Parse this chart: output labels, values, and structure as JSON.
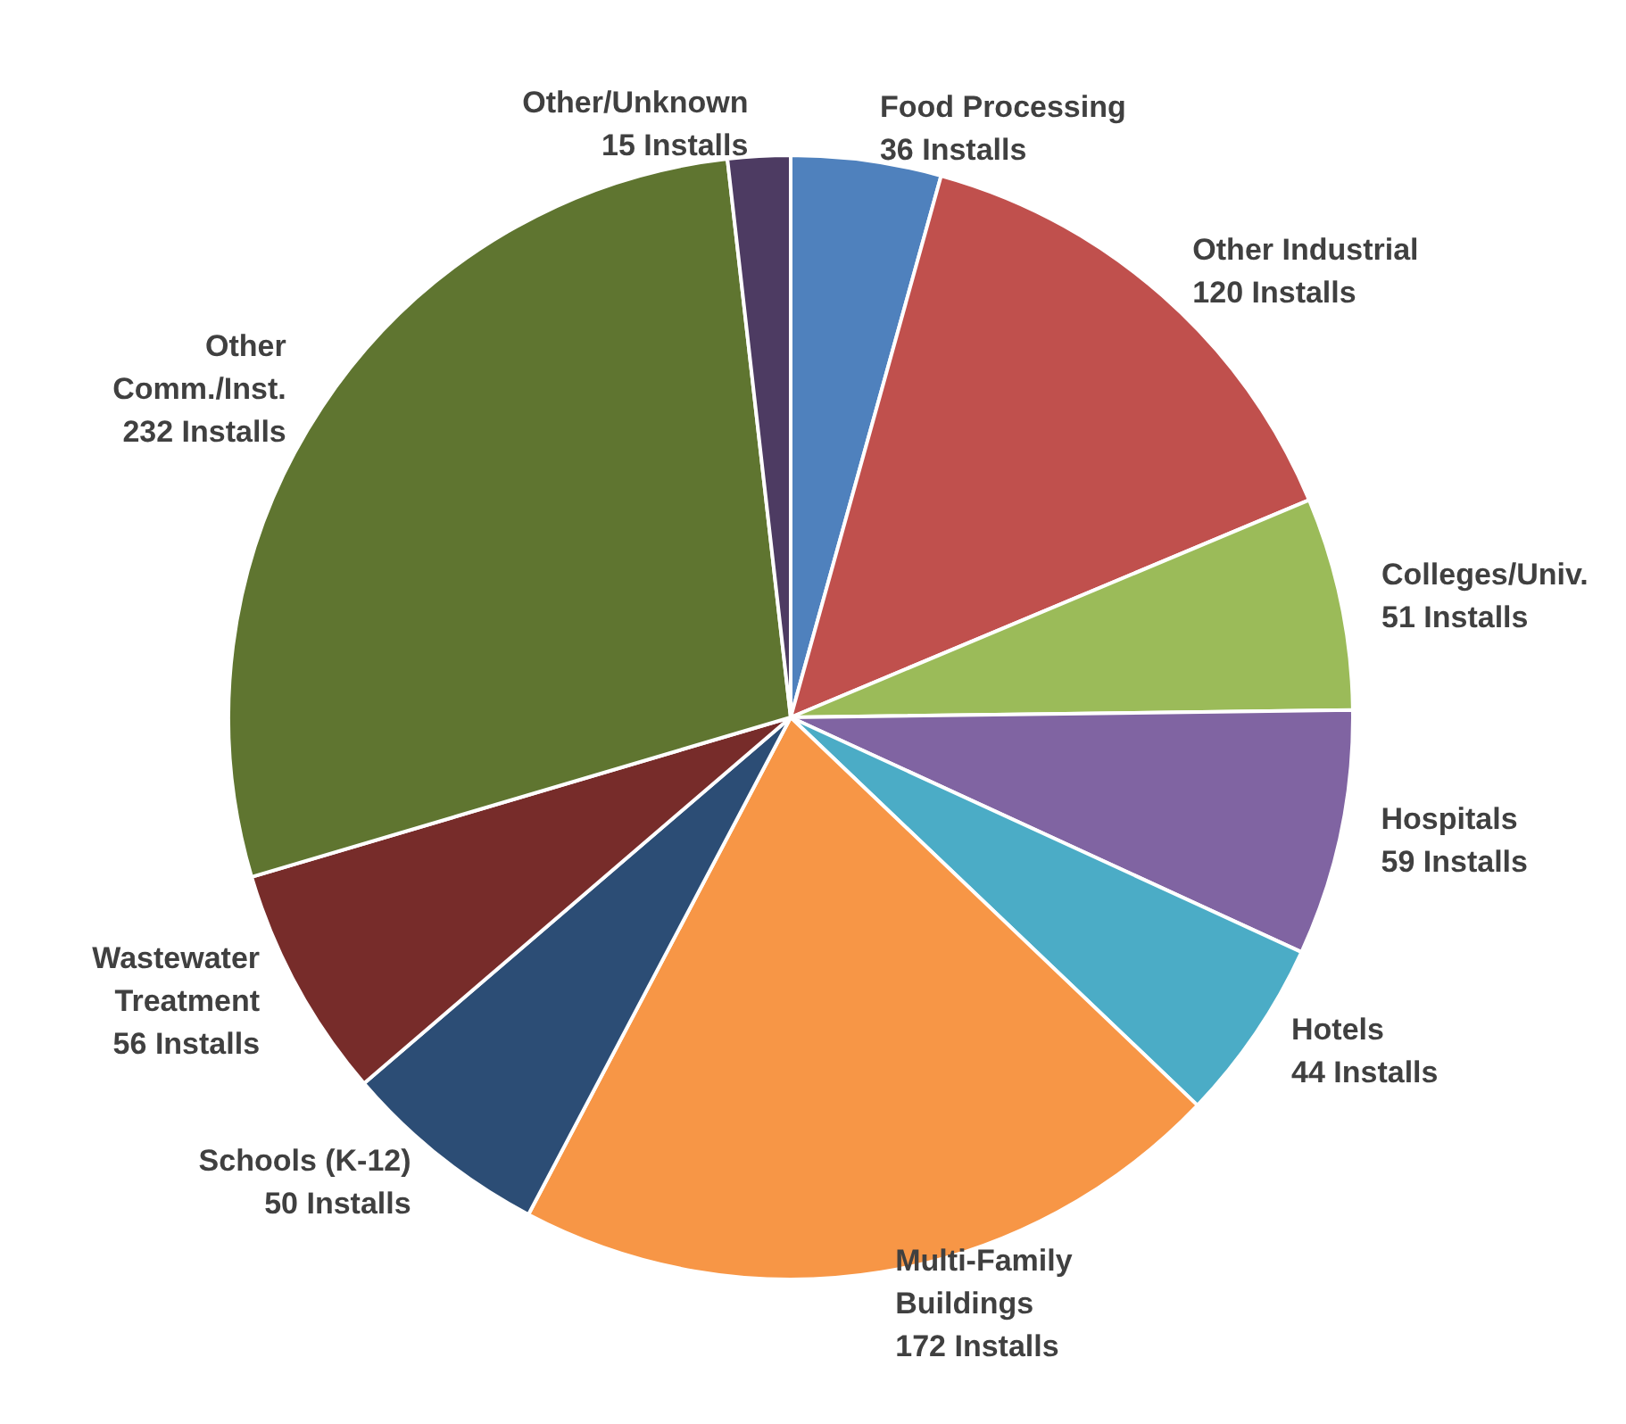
{
  "chart_data": {
    "type": "pie",
    "categories": [
      "Food Processing",
      "Other Industrial",
      "Colleges/Univ.",
      "Hospitals",
      "Hotels",
      "Multi-Family\nBuildings",
      "Schools (K-12)",
      "Wastewater\nTreatment",
      "Other\nComm./Inst.",
      "Other/Unknown"
    ],
    "values": [
      36,
      120,
      51,
      59,
      44,
      172,
      50,
      56,
      232,
      15
    ],
    "value_labels": [
      "36 Installs",
      "120 Installs",
      "51 Installs",
      "59 Installs",
      "44 Installs",
      "172 Installs",
      "50 Installs",
      "56 Installs",
      "232 Installs",
      "15 Installs"
    ],
    "colors": [
      "#4f81bd",
      "#c0504d",
      "#9bbb59",
      "#8064a2",
      "#4bacc6",
      "#f79646",
      "#2c4d75",
      "#772c2a",
      "#5f7530",
      "#4d3b62"
    ],
    "legend": false
  }
}
